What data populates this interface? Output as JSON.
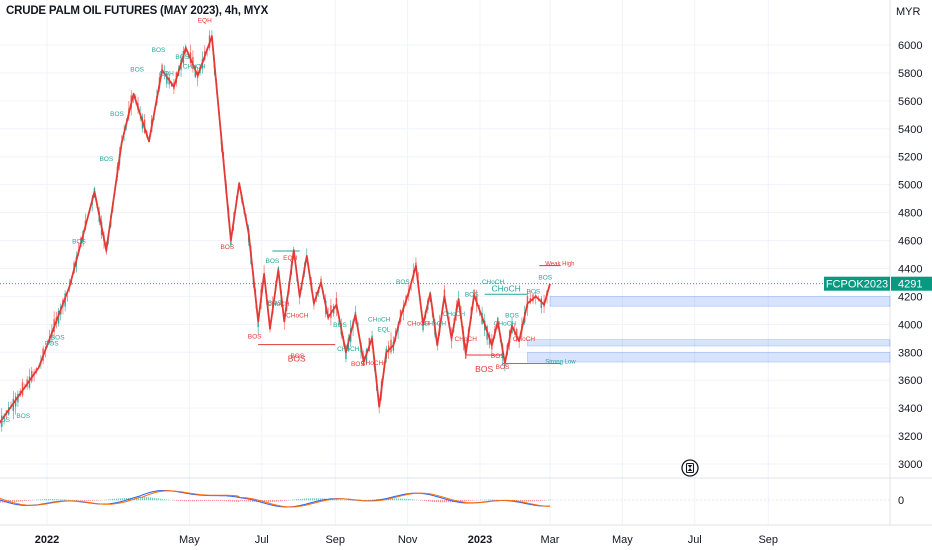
{
  "header": {
    "title": "CRUDE PALM OIL FUTURES (MAY 2023), 4h, MYX",
    "currency": "MYR"
  },
  "price_badge": {
    "symbol": "FCPOK2023",
    "price": "4291"
  },
  "colors": {
    "zigzag": "#e53935",
    "bos_green": "#26a69a",
    "bos_red": "#e53935",
    "zone_blue": "#2962ff",
    "badge_bg": "#089981"
  },
  "icons": {
    "replay": "clock-icon"
  },
  "chart_data": {
    "type": "line",
    "title": "CRUDE PALM OIL FUTURES (MAY 2023), 4h, MYX",
    "xlabel": "",
    "ylabel": "MYR",
    "ylim": [
      2880,
      6260
    ],
    "grid": true,
    "y_ticks": [
      "6000",
      "5800",
      "5600",
      "5400",
      "5200",
      "5000",
      "4800",
      "4600",
      "4400",
      "4200",
      "4000",
      "3800",
      "3600",
      "3400",
      "3200",
      "3000"
    ],
    "x_ticks": [
      "2022",
      "May",
      "Jul",
      "Sep",
      "Nov",
      "2023",
      "Mar",
      "May",
      "Jul",
      "Sep"
    ],
    "bold_x_ticks": [
      "2022",
      "2023"
    ],
    "oscillator_tick": "0",
    "last_price": 4291,
    "zigzag": {
      "x": [
        "2021-11-20",
        "2021-12-25",
        "2022-01-20",
        "2022-02-10",
        "2022-02-20",
        "2022-03-05",
        "2022-03-15",
        "2022-03-28",
        "2022-04-08",
        "2022-04-18",
        "2022-04-28",
        "2022-05-08",
        "2022-05-20",
        "2022-06-05",
        "2022-06-12",
        "2022-06-20",
        "2022-06-28",
        "2022-07-03",
        "2022-07-08",
        "2022-07-15",
        "2022-07-20",
        "2022-07-28",
        "2022-08-02",
        "2022-08-08",
        "2022-08-14",
        "2022-08-20",
        "2022-08-26",
        "2022-09-02",
        "2022-09-10",
        "2022-09-18",
        "2022-09-25",
        "2022-10-02",
        "2022-10-08",
        "2022-10-14",
        "2022-10-20",
        "2022-10-26",
        "2022-11-02",
        "2022-11-08",
        "2022-11-14",
        "2022-11-20",
        "2022-11-26",
        "2022-12-02",
        "2022-12-08",
        "2022-12-14",
        "2022-12-20",
        "2022-12-27",
        "2023-01-05",
        "2023-01-11",
        "2023-01-16",
        "2023-01-22",
        "2023-01-28",
        "2023-02-03",
        "2023-02-10",
        "2023-02-17",
        "2023-02-24",
        "2023-03-01"
      ],
      "y": [
        3270,
        3690,
        4270,
        4950,
        4530,
        5300,
        5650,
        5310,
        5820,
        5700,
        5980,
        5780,
        6060,
        4600,
        5010,
        4650,
        4020,
        4360,
        3970,
        4390,
        4020,
        4530,
        4200,
        4490,
        4150,
        4300,
        4050,
        4140,
        3800,
        4070,
        3730,
        3900,
        3410,
        3800,
        3850,
        4050,
        4230,
        4420,
        4000,
        4220,
        3850,
        4200,
        3900,
        4180,
        3790,
        4210,
        4000,
        3850,
        4020,
        3720,
        3990,
        3880,
        4150,
        4200,
        4140,
        4290
      ]
    },
    "structure_labels": [
      {
        "x": "2021-11-25",
        "y": 3300,
        "text": "BOS",
        "color": "green"
      },
      {
        "x": "2021-12-12",
        "y": 3330,
        "text": "BOS",
        "color": "green"
      },
      {
        "x": "2022-01-05",
        "y": 3850,
        "text": "BOS",
        "color": "green"
      },
      {
        "x": "2022-01-10",
        "y": 3890,
        "text": "BOS",
        "color": "green"
      },
      {
        "x": "2022-01-28",
        "y": 4580,
        "text": "BOS",
        "color": "green"
      },
      {
        "x": "2022-02-20",
        "y": 5170,
        "text": "BOS",
        "color": "green"
      },
      {
        "x": "2022-03-01",
        "y": 5490,
        "text": "BOS",
        "color": "green"
      },
      {
        "x": "2022-03-18",
        "y": 5810,
        "text": "BOS",
        "color": "green"
      },
      {
        "x": "2022-04-05",
        "y": 5950,
        "text": "BOS",
        "color": "green"
      },
      {
        "x": "2022-04-12",
        "y": 5780,
        "text": "EQH",
        "color": "green"
      },
      {
        "x": "2022-04-25",
        "y": 5900,
        "text": "BOS",
        "color": "green"
      },
      {
        "x": "2022-05-05",
        "y": 5830,
        "text": "CHoCH",
        "color": "green"
      },
      {
        "x": "2022-05-14",
        "y": 6160,
        "text": "EQH",
        "color": "red"
      },
      {
        "x": "2022-06-02",
        "y": 4540,
        "text": "BOS",
        "color": "red"
      },
      {
        "x": "2022-07-10",
        "y": 4440,
        "text": "BOS",
        "color": "green"
      },
      {
        "x": "2022-07-25",
        "y": 4460,
        "text": "EQH",
        "color": "red"
      },
      {
        "x": "2022-07-12",
        "y": 4140,
        "text": "BOS",
        "color": "green"
      },
      {
        "x": "2022-07-15",
        "y": 4130,
        "text": "CHoCH",
        "color": "red"
      },
      {
        "x": "2022-07-31",
        "y": 4050,
        "text": "CHoCH",
        "color": "red"
      },
      {
        "x": "2022-06-25",
        "y": 3900,
        "text": "BOS",
        "color": "red"
      },
      {
        "x": "2022-07-31",
        "y": 3760,
        "text": "BOS",
        "color": "red"
      },
      {
        "x": "2022-09-05",
        "y": 3980,
        "text": "BOS",
        "color": "green"
      },
      {
        "x": "2022-09-12",
        "y": 3810,
        "text": "CHoCH",
        "color": "green"
      },
      {
        "x": "2022-09-20",
        "y": 3700,
        "text": "BOS",
        "color": "red"
      },
      {
        "x": "2022-10-02",
        "y": 3710,
        "text": "CHoCH",
        "color": "red"
      },
      {
        "x": "2022-10-08",
        "y": 4020,
        "text": "CHoCH",
        "color": "green"
      },
      {
        "x": "2022-10-12",
        "y": 3950,
        "text": "EQL",
        "color": "green"
      },
      {
        "x": "2022-10-28",
        "y": 4290,
        "text": "BOS",
        "color": "green"
      },
      {
        "x": "2022-11-10",
        "y": 3990,
        "text": "CHoCH",
        "color": "red"
      },
      {
        "x": "2022-11-24",
        "y": 3990,
        "text": "CHoCH",
        "color": "green"
      },
      {
        "x": "2022-12-10",
        "y": 4060,
        "text": "CHoCH",
        "color": "green"
      },
      {
        "x": "2022-12-20",
        "y": 3880,
        "text": "CHoCH",
        "color": "red"
      },
      {
        "x": "2022-12-25",
        "y": 4200,
        "text": "BOS",
        "color": "green"
      },
      {
        "x": "2023-01-12",
        "y": 4290,
        "text": "CHoCH",
        "color": "green"
      },
      {
        "x": "2023-01-22",
        "y": 3990,
        "text": "CHoCH",
        "color": "green"
      },
      {
        "x": "2023-01-28",
        "y": 4050,
        "text": "BOS",
        "color": "green"
      },
      {
        "x": "2023-01-16",
        "y": 3760,
        "text": "BOS",
        "color": "red"
      },
      {
        "x": "2023-01-20",
        "y": 3680,
        "text": "BOS",
        "color": "red"
      },
      {
        "x": "2023-02-07",
        "y": 3880,
        "text": "CHoCH",
        "color": "red"
      },
      {
        "x": "2023-02-15",
        "y": 4220,
        "text": "BOS",
        "color": "green"
      },
      {
        "x": "2023-02-25",
        "y": 4320,
        "text": "BOS",
        "color": "green"
      }
    ],
    "bos_lines": [
      {
        "x1": "2022-06-28",
        "x2": "2022-09-01",
        "y": 3855,
        "label": "BOS",
        "color": "red"
      },
      {
        "x1": "2022-12-20",
        "x2": "2023-01-20",
        "y": 3780,
        "label": "BOS",
        "color": "red"
      },
      {
        "x1": "2023-01-05",
        "x2": "2023-02-10",
        "y": 4215,
        "label": "CHoCH",
        "color": "green"
      },
      {
        "x1": "2022-07-10",
        "x2": "2022-08-02",
        "y": 4525,
        "label": "",
        "color": "green"
      }
    ],
    "zones": [
      {
        "x1": "2023-03-01",
        "y1": 4130,
        "y2": 4200
      },
      {
        "x1": "2023-02-10",
        "y1": 3845,
        "y2": 3890
      },
      {
        "x1": "2023-02-10",
        "y1": 3730,
        "y2": 3800
      }
    ],
    "swing_markers": [
      {
        "x": "2023-02-25",
        "y": 4420,
        "text": "Weak High",
        "color": "red"
      },
      {
        "x": "2023-02-25",
        "y": 3720,
        "text": "Strong Low",
        "color": "green"
      }
    ]
  }
}
